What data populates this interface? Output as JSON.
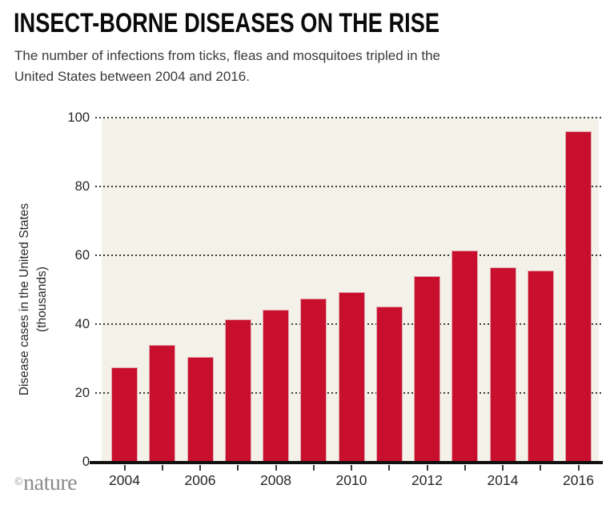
{
  "title": "INSECT-BORNE DISEASES ON THE RISE",
  "subtitle": "The number of infections from ticks, fleas and mosquitoes tripled in the\nUnited States between 2004 and 2016.",
  "credit": {
    "symbol": "©",
    "name": "nature"
  },
  "colors": {
    "bar": "#c8102e",
    "bar_edge": "#e2a9b0",
    "plot_bg": "#f4f2e8",
    "grid": "#3b3b3b",
    "axis": "#111111",
    "title": "#0a0a0a",
    "subtitle": "#3a3a3a",
    "tick_label": "#262626",
    "credit": "#8c8c8c"
  },
  "chart_data": {
    "type": "bar",
    "title": "INSECT-BORNE DISEASES ON THE RISE",
    "subtitle": "The number of infections from ticks, fleas and mosquitoes tripled in the United States between 2004 and 2016.",
    "x": [
      2004,
      2005,
      2006,
      2007,
      2008,
      2009,
      2010,
      2011,
      2012,
      2013,
      2014,
      2015,
      2016
    ],
    "values": [
      27.4,
      33.9,
      30.5,
      41.5,
      44.1,
      47.5,
      49.4,
      45.2,
      53.9,
      61.3,
      56.6,
      55.6,
      96.1
    ],
    "series_name": "Disease cases in the United States (thousands)",
    "xlabel": "",
    "ylabel": "Disease cases in the United States\n(thousands)",
    "ylim": [
      0,
      100
    ],
    "yticks": [
      0,
      20,
      40,
      60,
      80,
      100
    ],
    "xtick_labeled_years": [
      2004,
      2006,
      2008,
      2010,
      2012,
      2014,
      2016
    ],
    "grid": "horizontal-dotted",
    "legend": "none",
    "source_credit": "©nature"
  }
}
